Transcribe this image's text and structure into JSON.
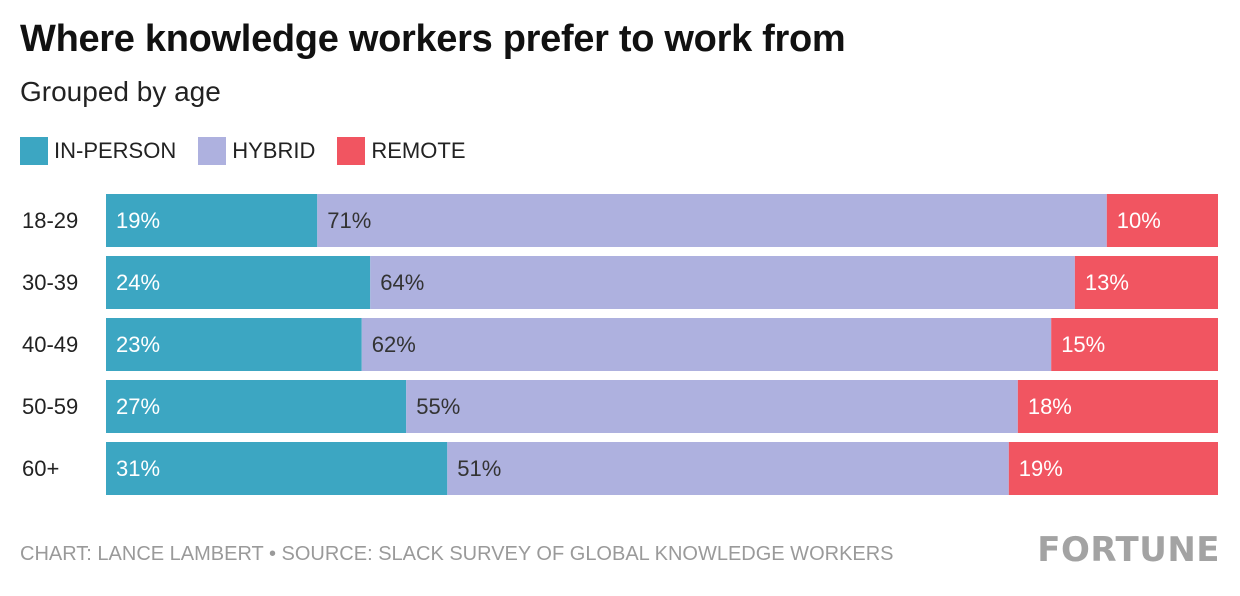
{
  "title": "Where knowledge workers prefer to work from",
  "subtitle": "Grouped by age",
  "footer": "CHART: LANCE LAMBERT • SOURCE: SLACK SURVEY OF GLOBAL KNOWLEDGE WORKERS",
  "brand": "FORTUNE",
  "colors": {
    "in_person": "#3ca6c2",
    "hybrid": "#aeb1df",
    "remote": "#f15561"
  },
  "chart_data": {
    "type": "bar",
    "orientation": "horizontal",
    "stacked": true,
    "categories": [
      "18-29",
      "30-39",
      "40-49",
      "50-59",
      "60+"
    ],
    "series": [
      {
        "name": "IN-PERSON",
        "color": "#3ca6c2",
        "values": [
          19,
          24,
          23,
          27,
          31
        ],
        "labels": [
          "19%",
          "24%",
          "23%",
          "27%",
          "31%"
        ]
      },
      {
        "name": "HYBRID",
        "color": "#aeb1df",
        "values": [
          71,
          64,
          62,
          55,
          51
        ],
        "labels": [
          "71%",
          "64%",
          "62%",
          "55%",
          "51%"
        ]
      },
      {
        "name": "REMOTE",
        "color": "#f15561",
        "values": [
          10,
          13,
          15,
          18,
          19
        ],
        "labels": [
          "10%",
          "13%",
          "15%",
          "18%",
          "19%"
        ]
      }
    ],
    "legend_position": "top-left",
    "grid": false
  }
}
